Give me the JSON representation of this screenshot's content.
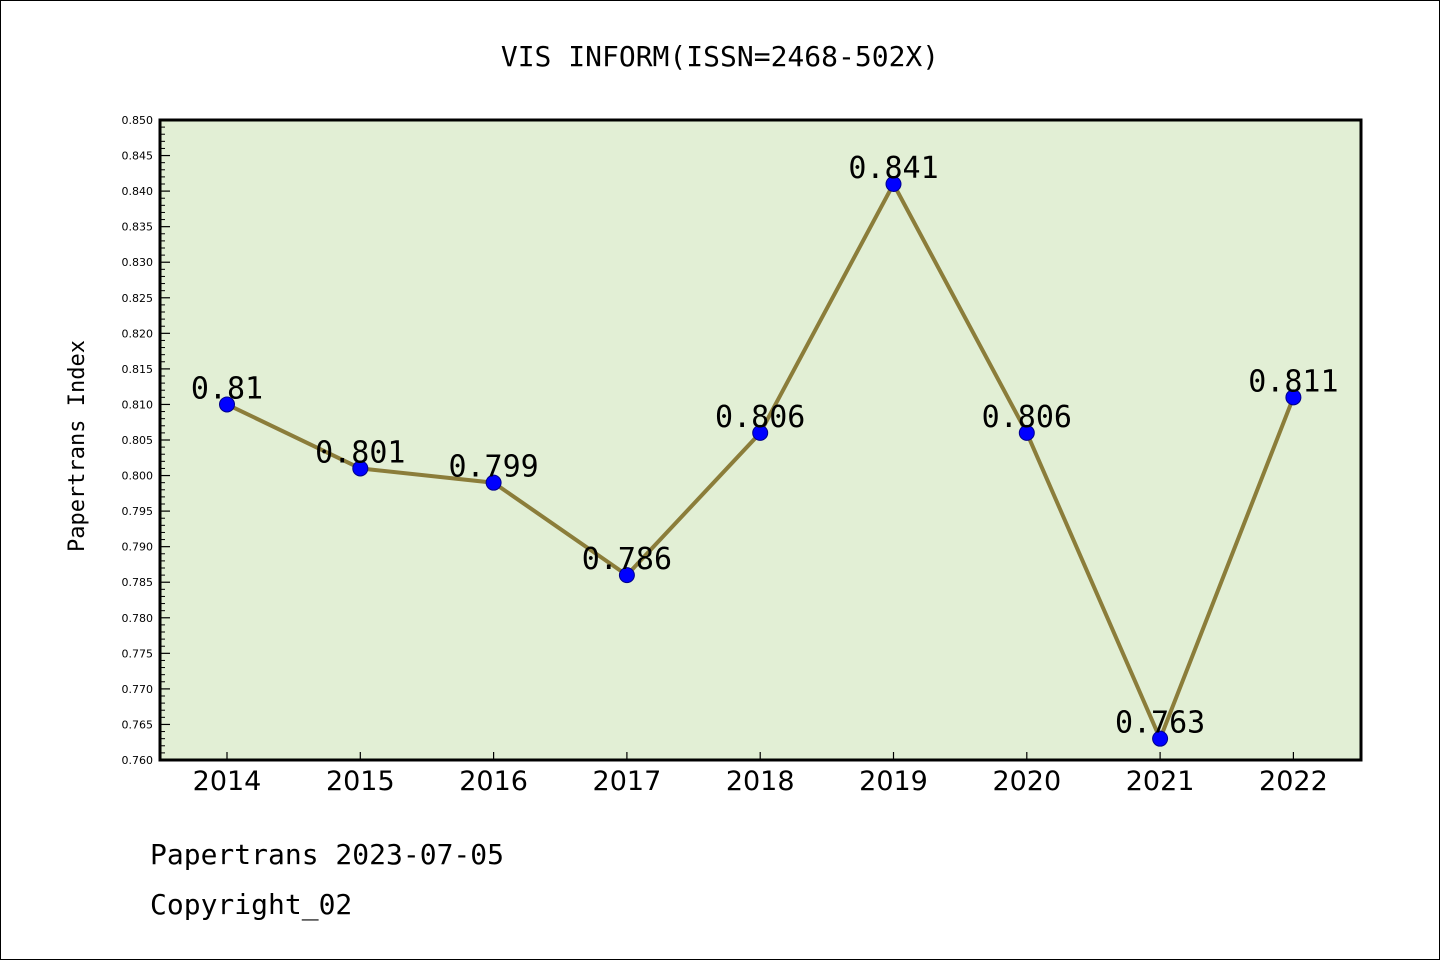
{
  "chart_data": {
    "type": "line",
    "title": "VIS INFORM(ISSN=2468-502X)",
    "ylabel": "Papertrans Index",
    "xlabel": "",
    "categories": [
      "2014",
      "2015",
      "2016",
      "2017",
      "2018",
      "2019",
      "2020",
      "2021",
      "2022"
    ],
    "values": [
      0.81,
      0.801,
      0.799,
      0.786,
      0.806,
      0.841,
      0.806,
      0.763,
      0.811
    ],
    "data_labels": [
      "0.81",
      "0.801",
      "0.799",
      "0.786",
      "0.806",
      "0.841",
      "0.806",
      "0.763",
      "0.811"
    ],
    "ylim": [
      0.76,
      0.85
    ],
    "yticks": [
      "0.760",
      "0.765",
      "0.770",
      "0.775",
      "0.780",
      "0.785",
      "0.790",
      "0.795",
      "0.800",
      "0.805",
      "0.810",
      "0.815",
      "0.820",
      "0.825",
      "0.830",
      "0.835",
      "0.840",
      "0.845",
      "0.850"
    ],
    "grid": false,
    "colors": {
      "plot_bg": "#e2efd5",
      "line": "#8b7d3a",
      "marker": "#0000ff"
    }
  },
  "footer": {
    "line1": "Papertrans 2023-07-05",
    "line2": "Copyright_02"
  }
}
